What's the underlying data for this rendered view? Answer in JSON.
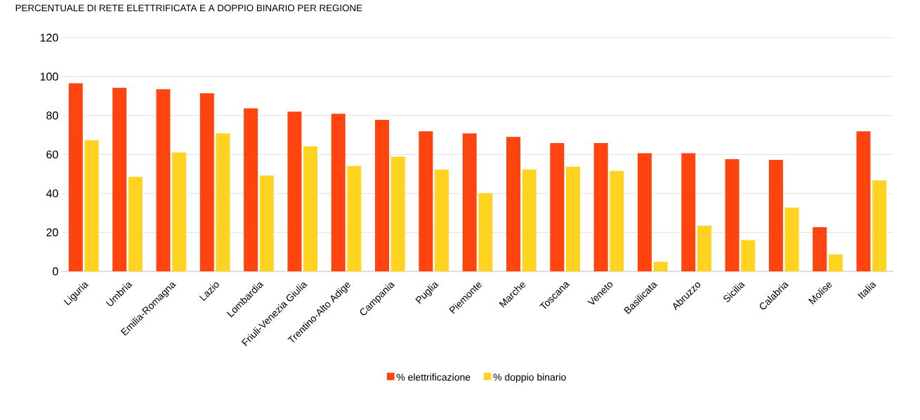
{
  "chart_data": {
    "type": "bar",
    "title": "PERCENTUALE DI RETE ELETTRIFICATA E A DOPPIO BINARIO PER REGIONE",
    "categories": [
      "Liguria",
      "Umbria",
      "Emilia-Romagna",
      "Lazio",
      "Lombardia",
      "Friuli-Venezia Giulia",
      "Trentino-Alto Adige",
      "Campania",
      "Puglia",
      "Piemonte",
      "Marche",
      "Toscana",
      "Veneto",
      "Basilicata",
      "Abruzzo",
      "Sicilia",
      "Calabria",
      "Molise",
      "Italia"
    ],
    "series": [
      {
        "name": "% elettrificazione",
        "color": "#ff4410",
        "values": [
          96.6,
          94.2,
          93.5,
          91.4,
          83.7,
          82,
          80.9,
          77.8,
          71.9,
          70.8,
          69,
          65.9,
          65.9,
          60.7,
          60.7,
          57.6,
          57.2,
          22.7,
          71.9
        ]
      },
      {
        "name": "% doppio binario",
        "color": "#ffd320",
        "values": [
          67.3,
          48.5,
          61,
          70.8,
          49.2,
          64.2,
          54.1,
          58.9,
          52.3,
          40.1,
          52.3,
          53.7,
          51.6,
          4.9,
          23.4,
          16,
          32.8,
          8.7,
          46.7
        ]
      }
    ],
    "ylim": [
      0,
      120
    ],
    "yticks": [
      0,
      20,
      40,
      60,
      80,
      100,
      120
    ],
    "grid": "y",
    "legend": "bottom"
  }
}
